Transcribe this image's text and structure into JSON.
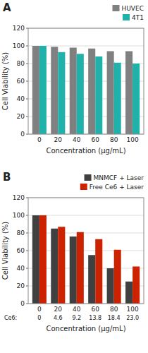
{
  "chart_data": [
    {
      "type": "bar",
      "title": "A",
      "xlabel": "Concentration (µg/mL)",
      "ylabel": "Cell Viability (%)",
      "categories": [
        "0",
        "20",
        "40",
        "60",
        "80",
        "100"
      ],
      "series": [
        {
          "name": "HUVEC",
          "color": "#808080",
          "values": [
            100,
            99,
            98,
            97,
            94,
            94
          ]
        },
        {
          "name": "4T1",
          "color": "#20B2AA",
          "values": [
            100,
            93,
            91,
            88,
            81,
            80
          ]
        }
      ],
      "ylim": [
        0,
        120
      ],
      "yticks": [
        0,
        20,
        40,
        60,
        80,
        100,
        120
      ],
      "grid": true,
      "legend": "upper right"
    },
    {
      "type": "bar",
      "title": "B",
      "xlabel": "Concentration (µg/mL)",
      "ylabel": "Cell Viability (%)",
      "categories": [
        "0",
        "20",
        "40",
        "60",
        "80",
        "100"
      ],
      "subcategories_label": "Ce6:",
      "subcategories": [
        "0",
        "4.6",
        "9.2",
        "13.8",
        "18.4",
        "23.0"
      ],
      "series": [
        {
          "name": "MNMCF + Laser",
          "color": "#404040",
          "values": [
            100,
            85,
            76,
            55,
            40,
            25
          ]
        },
        {
          "name": "Free Ce6 + Laser",
          "color": "#CC2200",
          "values": [
            100,
            87,
            81,
            73,
            61,
            42
          ]
        }
      ],
      "ylim": [
        0,
        120
      ],
      "yticks": [
        0,
        20,
        40,
        60,
        80,
        100,
        120
      ],
      "grid": true,
      "legend": "upper right"
    }
  ]
}
